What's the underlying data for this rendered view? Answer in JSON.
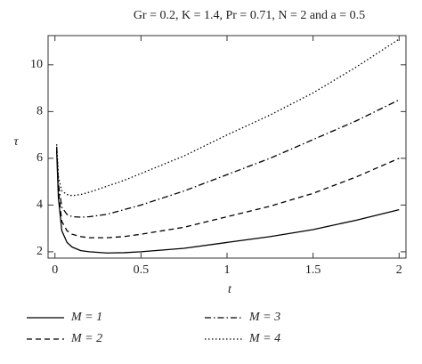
{
  "chart_data": {
    "type": "line",
    "title": "Gr = 0.2, K = 1.4, Pr = 0.71, N = 2 and a = 0.5",
    "x_label": "t",
    "y_label": "τ",
    "x": [
      0.01,
      0.02,
      0.04,
      0.07,
      0.1,
      0.15,
      0.2,
      0.3,
      0.4,
      0.5,
      0.75,
      1,
      1.25,
      1.5,
      1.75,
      2
    ],
    "series": [
      {
        "name": "M = 1",
        "color": "#000000",
        "dash": "solid",
        "values": [
          6.3,
          4.3,
          2.9,
          2.4,
          2.2,
          2.05,
          2.0,
          1.95,
          1.96,
          2.0,
          2.15,
          2.4,
          2.65,
          2.95,
          3.35,
          3.8
        ]
      },
      {
        "name": "M = 2",
        "color": "#000000",
        "dash": "dashed",
        "values": [
          6.4,
          4.6,
          3.3,
          2.9,
          2.75,
          2.65,
          2.6,
          2.6,
          2.65,
          2.75,
          3.05,
          3.5,
          3.95,
          4.5,
          5.2,
          6.0
        ]
      },
      {
        "name": "M = 3",
        "color": "#000000",
        "dash": "dashdot",
        "values": [
          6.5,
          4.9,
          3.9,
          3.6,
          3.5,
          3.48,
          3.5,
          3.6,
          3.8,
          4.0,
          4.6,
          5.3,
          6.0,
          6.8,
          7.6,
          8.5
        ]
      },
      {
        "name": "M = 4",
        "color": "#000000",
        "dash": "dotted",
        "values": [
          6.6,
          5.2,
          4.6,
          4.45,
          4.4,
          4.45,
          4.55,
          4.8,
          5.05,
          5.35,
          6.1,
          7.0,
          7.85,
          8.8,
          9.9,
          11.1
        ]
      }
    ],
    "xlim": [
      -0.04,
      2.04
    ],
    "ylim": [
      1.73,
      11.25
    ],
    "xticks": [
      0,
      0.5,
      1,
      1.5,
      2
    ],
    "yticks": [
      2,
      4,
      6,
      8,
      10
    ],
    "grid": false,
    "legend": "bottom"
  }
}
